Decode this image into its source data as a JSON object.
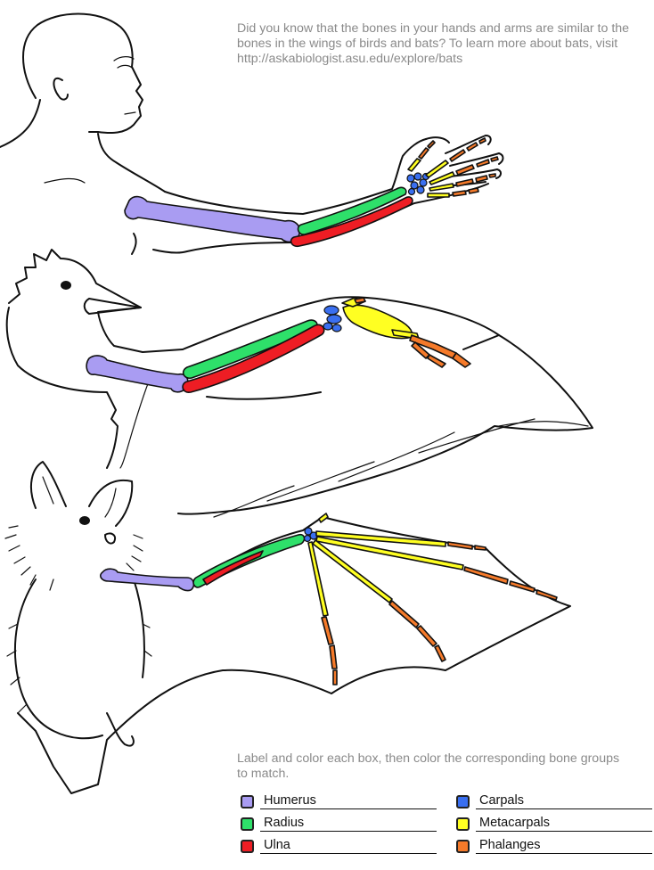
{
  "intro_text": "Did you know that the bones in your hands and arms are similar to the bones in the wings of birds and bats?  To learn more about bats, visit http://askabiologist.asu.edu/explore/bats",
  "instructions_text": "Label and color each box, then color the corresponding bone groups to match.",
  "colors": {
    "humerus": "#a99cf2",
    "radius": "#2ee06a",
    "ulna": "#ee1d24",
    "carpals": "#3a6ff0",
    "metacarpals": "#ffff22",
    "phalanges": "#f57a2a"
  },
  "legend": [
    {
      "label": "Humerus",
      "color_key": "humerus"
    },
    {
      "label": "Radius",
      "color_key": "radius"
    },
    {
      "label": "Ulna",
      "color_key": "ulna"
    },
    {
      "label": "Carpals",
      "color_key": "carpals"
    },
    {
      "label": "Metacarpals",
      "color_key": "metacarpals"
    },
    {
      "label": "Phalanges",
      "color_key": "phalanges"
    }
  ]
}
